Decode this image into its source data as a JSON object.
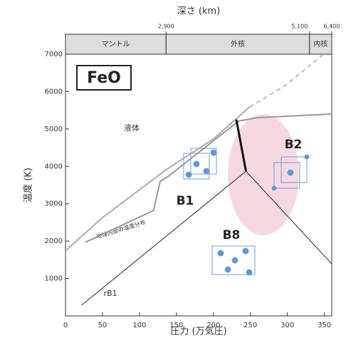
{
  "chart_data": {
    "type": "line",
    "xlabel": "圧力 (万気圧)",
    "ylabel": "温度 (K)",
    "x2label": "深さ (km)",
    "xlim": [
      0,
      360
    ],
    "ylim": [
      0,
      7000
    ],
    "xticks": [
      0,
      50,
      100,
      150,
      200,
      250,
      300,
      350
    ],
    "yticks": [
      1000,
      2000,
      3000,
      4000,
      5000,
      6000,
      7000
    ],
    "x2ticks": [
      {
        "value": 136,
        "label": "2,900"
      },
      {
        "value": 330,
        "label": "5,100"
      },
      {
        "value": 360,
        "label": "6,400"
      }
    ],
    "x2regions": [
      {
        "label": "マントル",
        "range": [
          0,
          136
        ]
      },
      {
        "label": "外核",
        "range": [
          136,
          330
        ]
      },
      {
        "label": "内核",
        "range": [
          330,
          360
        ]
      }
    ],
    "annotations": [
      "FeO",
      "液体",
      "B1",
      "B2",
      "B8",
      "rB1",
      "地球内部の温度分布"
    ],
    "series": [
      {
        "color": "#aaaaaa",
        "width": 2,
        "dash": false,
        "x": [
          0,
          50,
          136,
          200,
          249
        ],
        "values": [
          1740,
          2630,
          3910,
          4730,
          5590
        ]
      },
      {
        "color": "#bbbbbb",
        "width": 2,
        "dash": true,
        "x": [
          249,
          297,
          350
        ],
        "values": [
          5590,
          6160,
          7020
        ]
      },
      {
        "color": "#999999",
        "width": 2,
        "dash": false,
        "x": [
          27,
          119,
          128,
          138,
          234,
          258,
          360
        ],
        "values": [
          1970,
          2820,
          3600,
          3720,
          5210,
          5300,
          5400
        ]
      },
      {
        "color": "#444444",
        "width": 1.2,
        "dash": false,
        "x": [
          22,
          244
        ],
        "values": [
          290,
          3870
        ]
      },
      {
        "color": "#444444",
        "width": 1.2,
        "dash": false,
        "x": [
          244,
          360
        ],
        "values": [
          3870,
          1390
        ]
      },
      {
        "color": "#111111",
        "width": 3,
        "dash": false,
        "x": [
          231,
          244
        ],
        "values": [
          5250,
          3870
        ]
      }
    ]
  }
}
